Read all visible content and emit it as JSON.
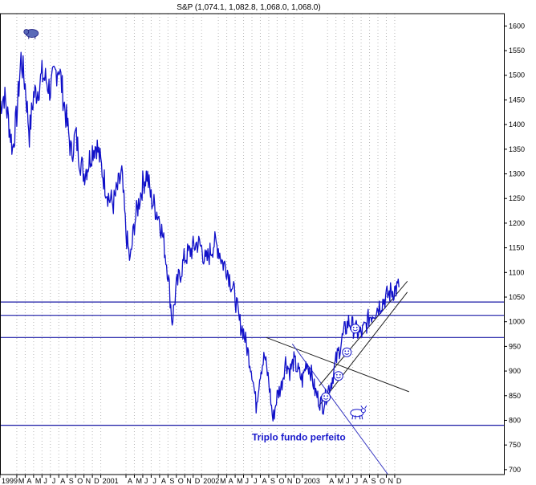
{
  "chart_data": {
    "type": "line",
    "title": "S&P (1,074.1, 1,082.8, 1,068.0, 1,068.0)",
    "xlabel": "",
    "ylabel": "",
    "ylim": [
      690,
      1625
    ],
    "xlim": [
      0,
      60
    ],
    "y_axis_position": "right",
    "grid": "vertical dotted (monthly)",
    "y_ticks": [
      700,
      750,
      800,
      850,
      900,
      950,
      1000,
      1050,
      1100,
      1150,
      1200,
      1250,
      1300,
      1350,
      1400,
      1450,
      1500,
      1550,
      1600
    ],
    "x_ticks": [
      {
        "label": "1999",
        "x": 0
      },
      {
        "label": "M",
        "x": 2
      },
      {
        "label": "A",
        "x": 3
      },
      {
        "label": "M",
        "x": 4
      },
      {
        "label": "J",
        "x": 5
      },
      {
        "label": "J",
        "x": 6
      },
      {
        "label": "A",
        "x": 7
      },
      {
        "label": "S",
        "x": 8
      },
      {
        "label": "O",
        "x": 9
      },
      {
        "label": "N",
        "x": 10
      },
      {
        "label": "D",
        "x": 11
      },
      {
        "label": "2001",
        "x": 12
      },
      {
        "label": "A",
        "x": 15
      },
      {
        "label": "M",
        "x": 16
      },
      {
        "label": "J",
        "x": 17
      },
      {
        "label": "J",
        "x": 18
      },
      {
        "label": "A",
        "x": 19
      },
      {
        "label": "S",
        "x": 20
      },
      {
        "label": "O",
        "x": 21
      },
      {
        "label": "N",
        "x": 22
      },
      {
        "label": "D",
        "x": 23
      },
      {
        "label": "2002",
        "x": 24
      },
      {
        "label": "M",
        "x": 26
      },
      {
        "label": "A",
        "x": 27
      },
      {
        "label": "M",
        "x": 28
      },
      {
        "label": "J",
        "x": 29
      },
      {
        "label": "J",
        "x": 30
      },
      {
        "label": "A",
        "x": 31
      },
      {
        "label": "S",
        "x": 32
      },
      {
        "label": "O",
        "x": 33
      },
      {
        "label": "N",
        "x": 34
      },
      {
        "label": "D",
        "x": 35
      },
      {
        "label": "2003",
        "x": 36
      },
      {
        "label": "A",
        "x": 39
      },
      {
        "label": "M",
        "x": 40
      },
      {
        "label": "J",
        "x": 41
      },
      {
        "label": "J",
        "x": 42
      },
      {
        "label": "A",
        "x": 43
      },
      {
        "label": "S",
        "x": 44
      },
      {
        "label": "O",
        "x": 45
      },
      {
        "label": "N",
        "x": 46
      },
      {
        "label": "D",
        "x": 47
      }
    ],
    "series": [
      {
        "color": "#1010c8",
        "x": [
          0,
          0.5,
          1,
          1.5,
          2,
          2.5,
          3,
          3.5,
          4,
          4.5,
          5,
          5.5,
          6,
          6.5,
          7,
          7.5,
          8,
          8.5,
          9,
          9.5,
          10,
          10.5,
          11,
          11.5,
          12,
          12.5,
          13,
          13.5,
          14,
          14.5,
          15,
          15.5,
          16,
          16.5,
          17,
          17.5,
          18,
          18.5,
          19,
          19.5,
          20,
          20.5,
          21,
          21.5,
          22,
          22.5,
          23,
          23.5,
          24,
          24.5,
          25,
          25.5,
          26,
          26.5,
          27,
          27.5,
          28,
          28.5,
          29,
          29.5,
          30,
          30.5,
          31,
          31.5,
          32,
          32.5,
          33,
          33.5,
          34,
          34.5,
          35,
          35.5,
          36,
          36.5,
          37,
          37.5,
          38,
          38.5,
          39,
          39.5,
          40,
          40.5,
          41,
          41.5,
          42,
          42.5,
          43,
          43.5,
          44,
          44.5,
          45,
          45.5,
          46,
          46.5,
          47,
          47.5
        ],
        "y": [
          1440,
          1460,
          1410,
          1350,
          1420,
          1535,
          1480,
          1380,
          1460,
          1470,
          1500,
          1490,
          1470,
          1500,
          1520,
          1460,
          1400,
          1340,
          1380,
          1330,
          1300,
          1320,
          1350,
          1360,
          1320,
          1280,
          1250,
          1240,
          1270,
          1300,
          1180,
          1120,
          1200,
          1240,
          1280,
          1300,
          1250,
          1230,
          1210,
          1160,
          1100,
          1000,
          1070,
          1100,
          1130,
          1140,
          1150,
          1160,
          1150,
          1120,
          1140,
          1160,
          1150,
          1120,
          1110,
          1080,
          1050,
          1000,
          980,
          940,
          900,
          830,
          900,
          930,
          880,
          800,
          850,
          870,
          920,
          900,
          920,
          900,
          880,
          920,
          900,
          860,
          840,
          830,
          860,
          880,
          920,
          950,
          980,
          1000,
          990,
          980,
          975,
          990,
          1010,
          1020,
          1030,
          1040,
          1050,
          1060,
          1065,
          1070
        ]
      }
    ],
    "horizontal_lines": [
      1040,
      1013,
      968,
      790
    ],
    "trend_lines": [
      {
        "x1": 31.7,
        "y1": 968,
        "x2": 48.7,
        "y2": 858
      },
      {
        "x1": 34.8,
        "y1": 955,
        "x2": 46.2,
        "y2": 690
      },
      {
        "x1": 38,
        "y1": 830,
        "x2": 48.5,
        "y2": 1060
      },
      {
        "x1": 38,
        "y1": 870,
        "x2": 48.5,
        "y2": 1082
      }
    ],
    "annotations": [
      {
        "text": "Triplo fundo perfeito",
        "x": 30.0,
        "y": 759
      }
    ],
    "markers": [
      {
        "type": "bear-icon",
        "x": 3.8,
        "y": 1585
      },
      {
        "type": "bull-icon",
        "x": 42.5,
        "y": 815
      },
      {
        "type": "smiley-icon",
        "x": 38.8,
        "y": 847
      },
      {
        "type": "smiley-icon",
        "x": 40.3,
        "y": 890
      },
      {
        "type": "smiley-icon",
        "x": 41.3,
        "y": 938
      },
      {
        "type": "smiley-icon",
        "x": 42.3,
        "y": 986
      }
    ]
  }
}
